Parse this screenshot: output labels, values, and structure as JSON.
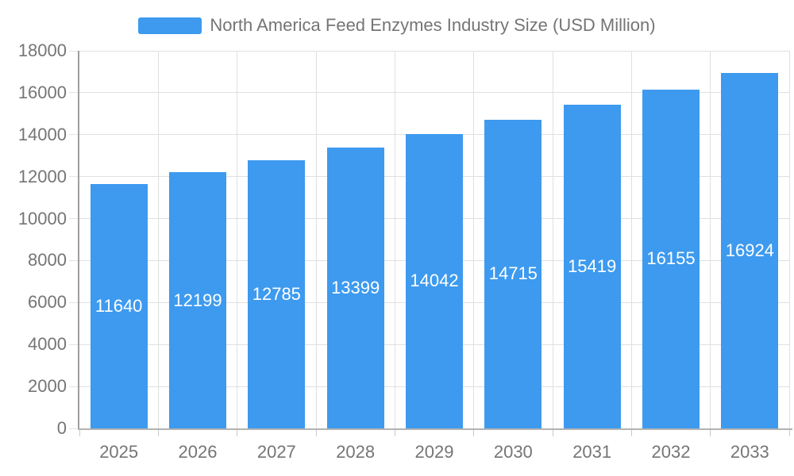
{
  "legend": {
    "label": "North America Feed Enzymes Industry Size (USD Million)"
  },
  "chart_data": {
    "type": "bar",
    "title": "North America Feed Enzymes Industry Size (USD Million)",
    "categories": [
      "2025",
      "2026",
      "2027",
      "2028",
      "2029",
      "2030",
      "2031",
      "2032",
      "2033"
    ],
    "values": [
      11640,
      12199,
      12785,
      13399,
      14042,
      14715,
      15419,
      16155,
      16924
    ],
    "xlabel": "",
    "ylabel": "",
    "ylim": [
      0,
      18000
    ],
    "y_ticks": [
      0,
      2000,
      4000,
      6000,
      8000,
      10000,
      12000,
      14000,
      16000,
      18000
    ],
    "grid": true,
    "legend_position": "top-center",
    "value_label_position": "inside-center",
    "colors": {
      "bar": "#3D9AEF",
      "value_label": "#FFFFFF",
      "axis_text": "#757575",
      "grid_line": "#E0E0E0",
      "y_axis_line": "#9E9E9E",
      "x_axis_line": "#B3B3B3",
      "tick_line": "#C9C9C9",
      "y_tick_line": "#E3E3E3"
    }
  }
}
